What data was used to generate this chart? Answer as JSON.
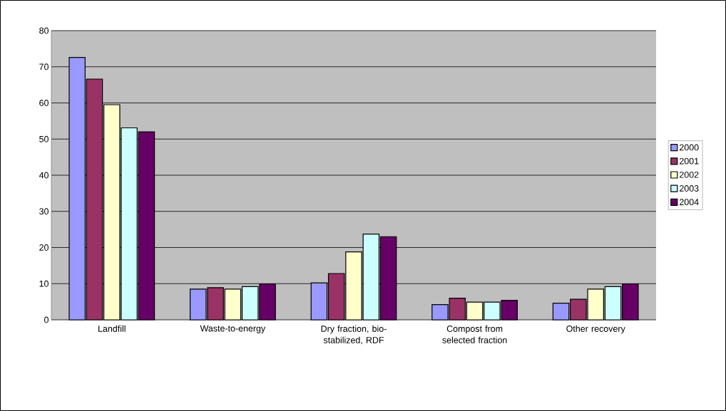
{
  "chart_data": {
    "type": "bar",
    "categories": [
      "Landfill",
      "Waste-to-energy",
      "Dry fraction, bio-stabilized, RDF",
      "Compost from selected fraction",
      "Other recovery"
    ],
    "series": [
      {
        "name": "2000",
        "color": "#9999ff",
        "values": [
          72.6,
          8.5,
          10.2,
          4.2,
          4.6
        ]
      },
      {
        "name": "2001",
        "color": "#993366",
        "values": [
          66.6,
          8.9,
          12.8,
          6.0,
          5.7
        ]
      },
      {
        "name": "2002",
        "color": "#ffffcc",
        "values": [
          59.5,
          8.5,
          18.8,
          4.9,
          8.5
        ]
      },
      {
        "name": "2003",
        "color": "#ccffff",
        "values": [
          53.1,
          9.2,
          23.7,
          4.9,
          9.2
        ]
      },
      {
        "name": "2004",
        "color": "#660066",
        "values": [
          52.0,
          9.9,
          23.0,
          5.4,
          9.9
        ]
      }
    ],
    "ylim": [
      0,
      80
    ],
    "yticks": [
      0,
      10,
      20,
      30,
      40,
      50,
      60,
      70,
      80
    ],
    "grid": "y",
    "legend": "right"
  }
}
